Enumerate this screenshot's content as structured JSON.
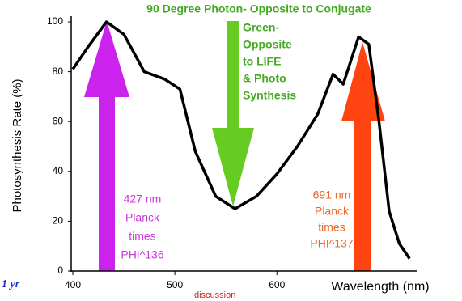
{
  "chart_data": {
    "type": "line",
    "title": "90 Degree Photon- Opposite to Conjugate",
    "xlabel": "Wavelength (nm)",
    "ylabel": "Photosynthesis Rate (%)",
    "x": [
      400,
      415,
      433,
      450,
      470,
      490,
      505,
      520,
      540,
      559,
      580,
      600,
      620,
      640,
      655,
      665,
      680,
      690,
      700,
      710,
      720,
      730
    ],
    "values": [
      81,
      90,
      100,
      95,
      80,
      77,
      73,
      48,
      30,
      25,
      30,
      39,
      50,
      63,
      79,
      75,
      94,
      91,
      60,
      24,
      11,
      5
    ],
    "color": "#000000",
    "xlim": [
      400,
      733
    ],
    "ylim": [
      0,
      100
    ],
    "xticks": [
      400,
      500,
      600
    ],
    "yticks": [
      0,
      20,
      40,
      60,
      80,
      100
    ],
    "annotations": [
      {
        "lines": [
          "Green-",
          "Opposite",
          "to LIFE",
          "& Photo",
          "Synthesis"
        ],
        "color": "#44aa22"
      },
      {
        "lines": [
          "427 nm",
          "Planck",
          "times",
          "PHI^136"
        ],
        "color": "#cc33dd"
      },
      {
        "lines": [
          "691 nm",
          "Planck",
          "times",
          "PHI^137"
        ],
        "color": "#ee6622"
      }
    ],
    "footer": [
      "1 yr",
      "discussion"
    ]
  }
}
